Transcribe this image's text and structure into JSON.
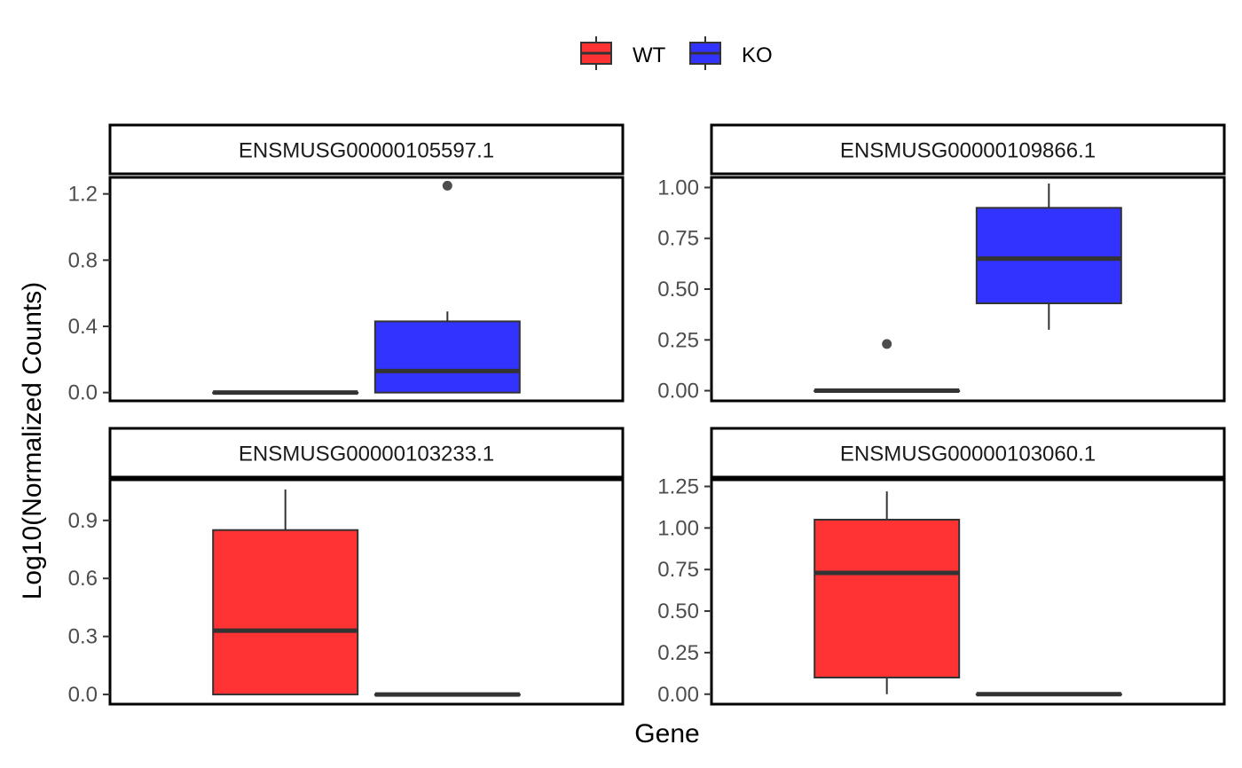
{
  "colors": {
    "wt": "#ff3333",
    "ko": "#3333ff",
    "line": "#333333",
    "outlier": "#4d4d4d",
    "axis_text": "#4d4d4d"
  },
  "legend": {
    "position": "top",
    "items": [
      {
        "label": "WT",
        "color": "#ff3333"
      },
      {
        "label": "KO",
        "color": "#3333ff"
      }
    ]
  },
  "chart_data": {
    "type": "box",
    "xlabel": "Gene",
    "ylabel": "Log10(Normalized Counts)",
    "groups": [
      "WT",
      "KO"
    ],
    "panels": [
      {
        "title": "ENSMUSG00000105597.1",
        "ylim": [
          -0.05,
          1.3
        ],
        "yticks": [
          0.0,
          0.4,
          0.8,
          1.2
        ],
        "ytick_labels": [
          "0.0",
          "0.4",
          "0.8",
          "1.2"
        ],
        "boxes": [
          {
            "group": "WT",
            "min": 0.0,
            "q1": 0.0,
            "median": 0.0,
            "q3": 0.0,
            "max": 0.0,
            "outliers": []
          },
          {
            "group": "KO",
            "min": 0.0,
            "q1": 0.0,
            "median": 0.13,
            "q3": 0.43,
            "max": 0.49,
            "outliers": [
              1.25
            ]
          }
        ]
      },
      {
        "title": "ENSMUSG00000109866.1",
        "ylim": [
          -0.05,
          1.05
        ],
        "yticks": [
          0.0,
          0.25,
          0.5,
          0.75,
          1.0
        ],
        "ytick_labels": [
          "0.00",
          "0.25",
          "0.50",
          "0.75",
          "1.00"
        ],
        "boxes": [
          {
            "group": "WT",
            "min": 0.0,
            "q1": 0.0,
            "median": 0.0,
            "q3": 0.0,
            "max": 0.0,
            "outliers": [
              0.23
            ]
          },
          {
            "group": "KO",
            "min": 0.3,
            "q1": 0.43,
            "median": 0.65,
            "q3": 0.9,
            "max": 1.02,
            "outliers": []
          }
        ]
      },
      {
        "title": "ENSMUSG00000103233.1",
        "ylim": [
          -0.05,
          1.11
        ],
        "yticks": [
          0.0,
          0.3,
          0.6,
          0.9
        ],
        "ytick_labels": [
          "0.0",
          "0.3",
          "0.6",
          "0.9"
        ],
        "boxes": [
          {
            "group": "WT",
            "min": 0.0,
            "q1": 0.0,
            "median": 0.33,
            "q3": 0.85,
            "max": 1.06,
            "outliers": []
          },
          {
            "group": "KO",
            "min": 0.0,
            "q1": 0.0,
            "median": 0.0,
            "q3": 0.0,
            "max": 0.0,
            "outliers": []
          }
        ]
      },
      {
        "title": "ENSMUSG00000103060.1",
        "ylim": [
          -0.06,
          1.29
        ],
        "yticks": [
          0.0,
          0.25,
          0.5,
          0.75,
          1.0,
          1.25
        ],
        "ytick_labels": [
          "0.00",
          "0.25",
          "0.50",
          "0.75",
          "1.00",
          "1.25"
        ],
        "boxes": [
          {
            "group": "WT",
            "min": 0.0,
            "q1": 0.1,
            "median": 0.73,
            "q3": 1.05,
            "max": 1.22,
            "outliers": []
          },
          {
            "group": "KO",
            "min": 0.0,
            "q1": 0.0,
            "median": 0.0,
            "q3": 0.0,
            "max": 0.0,
            "outliers": []
          }
        ]
      }
    ]
  }
}
